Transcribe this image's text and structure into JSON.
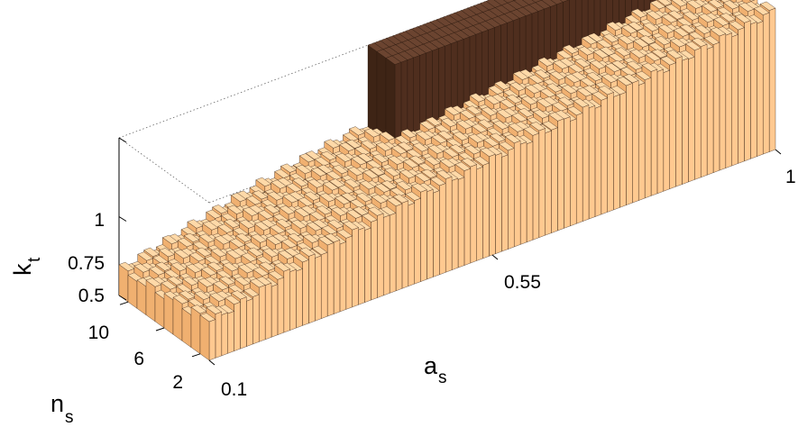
{
  "chart_data": {
    "type": "bar3d",
    "xlabel": {
      "main": "a",
      "sub": "s"
    },
    "ylabel": {
      "main": "n",
      "sub": "s"
    },
    "zlabel": {
      "main": "k",
      "sub": "t"
    },
    "x_ticks": [
      "0.1",
      "0.55",
      "1"
    ],
    "y_ticks": [
      "2",
      "6",
      "10"
    ],
    "z_ticks": [
      "0.5",
      "0.75",
      "1"
    ],
    "xlim": [
      0.1,
      1
    ],
    "ylim": [
      1,
      11
    ],
    "zlim": [
      0.5,
      1
    ],
    "grid": false,
    "series": [
      {
        "color": "#ffc990",
        "surface": [
          {
            "a_s": 0.1,
            "k_t": 0.62
          },
          {
            "a_s": 0.2,
            "k_t": 0.67
          },
          {
            "a_s": 0.3,
            "k_t": 0.72
          },
          {
            "a_s": 0.4,
            "k_t": 0.76
          },
          {
            "a_s": 0.5,
            "k_t": 0.79
          },
          {
            "a_s": 0.6,
            "k_t": 0.82
          },
          {
            "a_s": 0.7,
            "k_t": 0.85
          },
          {
            "a_s": 0.8,
            "k_t": 0.88
          },
          {
            "a_s": 0.9,
            "k_t": 0.91
          },
          {
            "a_s": 1.0,
            "k_t": 0.94
          }
        ]
      },
      {
        "color": "#5a3422",
        "a_s_range": [
          0.5,
          1.0
        ],
        "k_t_top": 1.0
      }
    ]
  }
}
